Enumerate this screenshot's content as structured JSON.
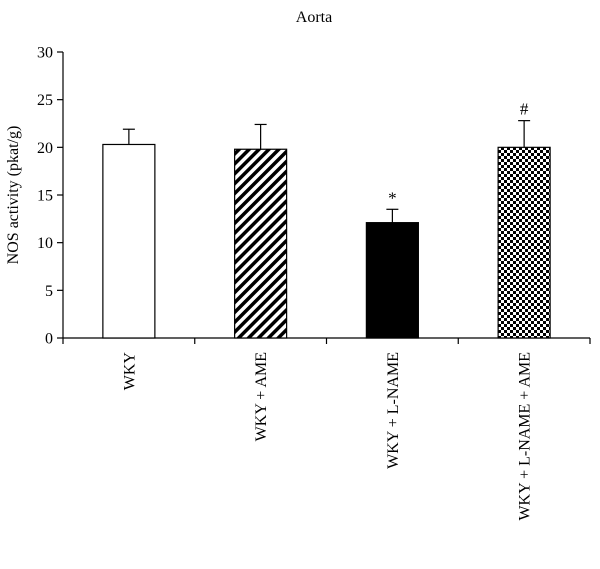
{
  "chart_data": {
    "type": "bar",
    "title": "Aorta",
    "xlabel": "",
    "ylabel": "NOS activity (pkat/g)",
    "ylim": [
      0,
      30
    ],
    "yticks": [
      0,
      5,
      10,
      15,
      20,
      25,
      30
    ],
    "grid": false,
    "categories": [
      "WKY",
      "WKY + AME",
      "WKY + L-NAME",
      "WKY + L-NAME + AME"
    ],
    "values": [
      20.3,
      19.8,
      12.1,
      20.0
    ],
    "errors": [
      1.6,
      2.6,
      1.4,
      2.8
    ],
    "fills": [
      "open",
      "diagonal-hatch",
      "solid",
      "checkerboard"
    ],
    "annotations": [
      "",
      "",
      "*",
      "#"
    ],
    "colors": {
      "bar_stroke": "#000000",
      "bar_solid": "#000000",
      "bar_open": "#ffffff"
    }
  }
}
